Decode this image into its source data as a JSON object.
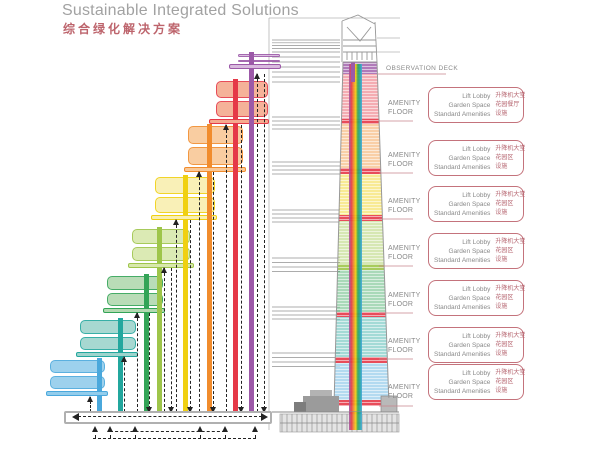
{
  "header": {
    "title": "Sustainable Integrated Solutions",
    "subtitle_zh": "综合绿化解决方案"
  },
  "tower": {
    "observation_deck_label": "OBSERVATION DECK",
    "amenity_label_line1": "AMENITY",
    "amenity_label_line2": "FLOOR"
  },
  "amenity_boxes": [
    {
      "en": [
        "Lift Lobby",
        "Garden Space",
        "Standard Amenities"
      ],
      "zh": [
        "升降机大堂",
        "花园餐厅",
        "设施"
      ]
    },
    {
      "en": [
        "Lift Lobby",
        "Garden Space",
        "Standard Amenities"
      ],
      "zh": [
        "升降机大堂",
        "花园区",
        "设施"
      ]
    },
    {
      "en": [
        "Lift Lobby",
        "Garden Space",
        "Standard Amenities"
      ],
      "zh": [
        "升降机大堂",
        "花园区",
        "设施"
      ]
    },
    {
      "en": [
        "Lift Lobby",
        "Garden Space",
        "Standard Amenities"
      ],
      "zh": [
        "升降机大堂",
        "花园区",
        "设施"
      ]
    },
    {
      "en": [
        "Lift Lobby",
        "Garden Space",
        "Standard Amenities"
      ],
      "zh": [
        "升降机大堂",
        "花园区",
        "设施"
      ]
    },
    {
      "en": [
        "Lift Lobby",
        "Garden Space",
        "Standard Amenities"
      ],
      "zh": [
        "升降机大堂",
        "花园区",
        "设施"
      ]
    },
    {
      "en": [
        "Lift Lobby",
        "Garden Space",
        "Standard Amenities"
      ],
      "zh": [
        "升降机大堂",
        "花园区",
        "设施"
      ]
    }
  ],
  "zones": [
    {
      "name": "purple",
      "strong": "#9c59a8",
      "light": "#d9bade"
    },
    {
      "name": "red",
      "strong": "#e53948",
      "light": "#f5aa8f"
    },
    {
      "name": "orange",
      "strong": "#f18c2d",
      "light": "#f9c897"
    },
    {
      "name": "yellow",
      "strong": "#f0d011",
      "light": "#f9efb0"
    },
    {
      "name": "lime",
      "strong": "#9ec54a",
      "light": "#d8e8ac"
    },
    {
      "name": "green",
      "strong": "#33a457",
      "light": "#b2d9b0"
    },
    {
      "name": "teal",
      "strong": "#23a79e",
      "light": "#9ed4cd"
    },
    {
      "name": "blue",
      "strong": "#4aa8dc",
      "light": "#93cdec"
    }
  ],
  "colors": {
    "title": "#a2a2a2",
    "subtitle": "#bd646c",
    "box_border": "#c4737c",
    "label_text": "#8a8a8a",
    "leader_line": "#c9858c",
    "dashed_arrow": "#222222",
    "base_border": "#b0b0b0"
  }
}
